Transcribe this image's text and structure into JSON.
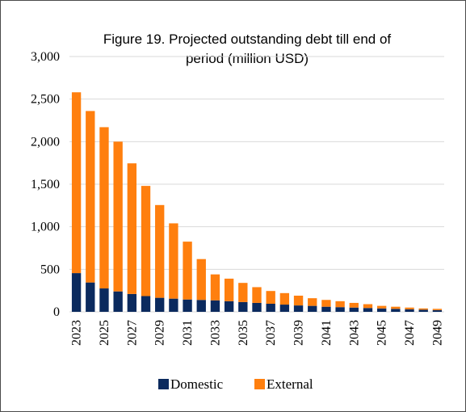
{
  "chart_data": {
    "type": "bar",
    "stacked": true,
    "title": "Figure 19. Projected outstanding debt till end of period (million USD)",
    "title_lines": [
      "Figure 19. Projected outstanding debt till end of",
      "period (million USD)"
    ],
    "xlabel": "",
    "ylabel": "",
    "ylim": [
      0,
      3000
    ],
    "yticks": [
      0,
      500,
      1000,
      1500,
      2000,
      2500,
      3000
    ],
    "ytick_labels": [
      "0",
      "500",
      "1,000",
      "1,500",
      "2,000",
      "2,500",
      "3,000"
    ],
    "grid": true,
    "legend_position": "bottom",
    "categories": [
      "2023",
      "2024",
      "2025",
      "2026",
      "2027",
      "2028",
      "2029",
      "2030",
      "2031",
      "2032",
      "2033",
      "2034",
      "2035",
      "2036",
      "2037",
      "2038",
      "2039",
      "2040",
      "2041",
      "2042",
      "2043",
      "2044",
      "2045",
      "2046",
      "2047",
      "2048",
      "2049"
    ],
    "xtick_labels": [
      "2023",
      "",
      "2025",
      "",
      "2027",
      "",
      "2029",
      "",
      "2031",
      "",
      "2033",
      "",
      "2035",
      "",
      "2037",
      "",
      "2039",
      "",
      "2041",
      "",
      "2043",
      "",
      "2045",
      "",
      "2047",
      "",
      "2049"
    ],
    "series": [
      {
        "name": "Domestic",
        "color": "#0b2a5e",
        "values": [
          455,
          345,
          275,
          240,
          210,
          185,
          165,
          155,
          145,
          140,
          135,
          125,
          115,
          105,
          95,
          85,
          75,
          70,
          60,
          55,
          50,
          45,
          40,
          35,
          30,
          25,
          20
        ]
      },
      {
        "name": "External",
        "color": "#ff7f0e",
        "values": [
          2125,
          2015,
          1895,
          1760,
          1535,
          1295,
          1090,
          885,
          680,
          480,
          305,
          265,
          225,
          185,
          150,
          135,
          115,
          90,
          80,
          70,
          55,
          45,
          30,
          25,
          20,
          15,
          15
        ]
      }
    ]
  }
}
